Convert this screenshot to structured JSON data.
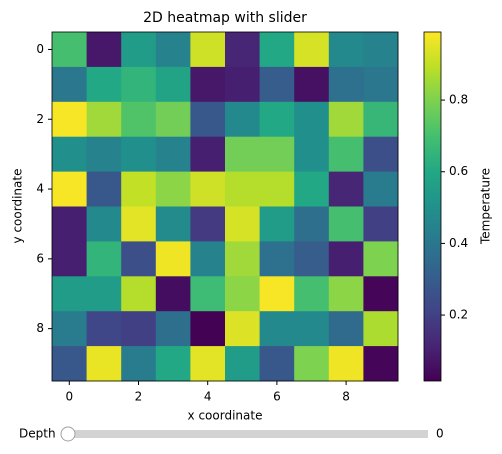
{
  "chart_data": {
    "type": "heatmap",
    "title": "2D heatmap with slider",
    "x_label": "x coordinate",
    "y_label": "y coordinate",
    "x": [
      0,
      1,
      2,
      3,
      4,
      5,
      6,
      7,
      8,
      9
    ],
    "y": [
      0,
      1,
      2,
      3,
      4,
      5,
      6,
      7,
      8,
      9
    ],
    "values": [
      [
        0.7,
        0.08,
        0.55,
        0.45,
        0.92,
        0.12,
        0.6,
        0.93,
        0.47,
        0.45
      ],
      [
        0.4,
        0.6,
        0.65,
        0.58,
        0.08,
        0.1,
        0.3,
        0.06,
        0.38,
        0.4
      ],
      [
        0.98,
        0.85,
        0.72,
        0.78,
        0.28,
        0.47,
        0.6,
        0.5,
        0.85,
        0.66
      ],
      [
        0.5,
        0.45,
        0.5,
        0.45,
        0.1,
        0.78,
        0.78,
        0.5,
        0.7,
        0.25
      ],
      [
        0.98,
        0.28,
        0.9,
        0.82,
        0.92,
        0.88,
        0.88,
        0.6,
        0.12,
        0.42
      ],
      [
        0.1,
        0.47,
        0.95,
        0.48,
        0.18,
        0.93,
        0.55,
        0.37,
        0.7,
        0.2
      ],
      [
        0.1,
        0.65,
        0.25,
        0.97,
        0.45,
        0.85,
        0.38,
        0.3,
        0.1,
        0.8
      ],
      [
        0.55,
        0.55,
        0.88,
        0.05,
        0.68,
        0.82,
        0.98,
        0.7,
        0.82,
        0.03
      ],
      [
        0.42,
        0.22,
        0.2,
        0.37,
        0.02,
        0.94,
        0.47,
        0.47,
        0.35,
        0.87
      ],
      [
        0.28,
        0.96,
        0.42,
        0.6,
        0.95,
        0.55,
        0.28,
        0.8,
        0.97,
        0.03
      ]
    ],
    "xlim": [
      -0.5,
      9.5
    ],
    "ylim": [
      9.5,
      -0.5
    ],
    "xticks": [
      0,
      2,
      4,
      6,
      8
    ],
    "yticks": [
      0,
      2,
      4,
      6,
      8
    ],
    "colormap": "viridis",
    "colorbar_label": "Temperature",
    "zlim": [
      0.016,
      0.99
    ],
    "colorbar_ticks": [
      0.2,
      0.4,
      0.6,
      0.8
    ],
    "slider": {
      "label": "Depth",
      "value": 0
    }
  }
}
